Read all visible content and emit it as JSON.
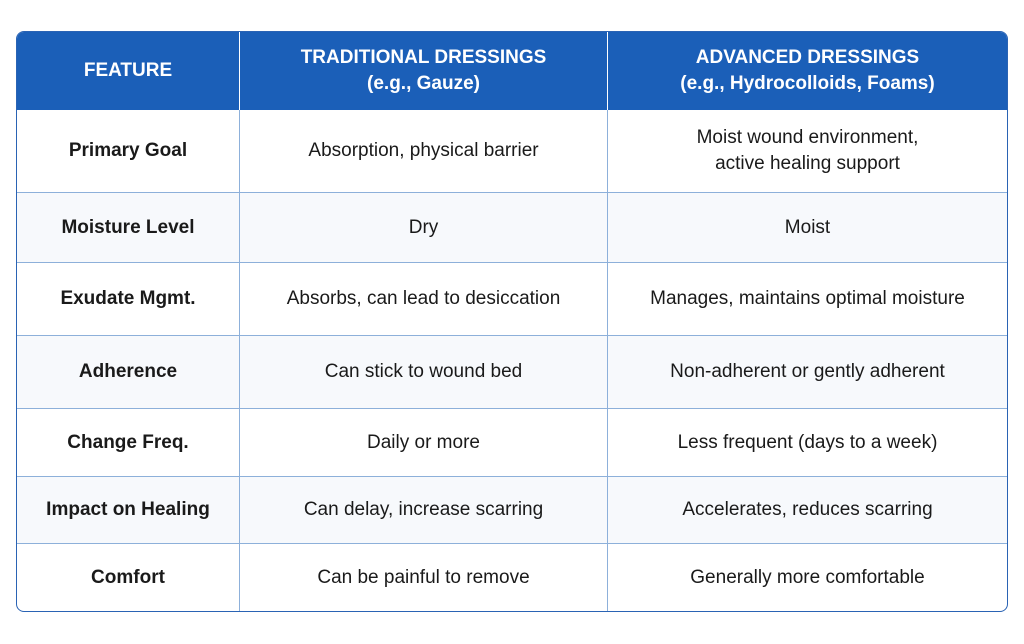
{
  "table": {
    "columns": [
      {
        "title": "FEATURE"
      },
      {
        "title": "TRADITIONAL DRESSINGS",
        "subtitle": "(e.g., Gauze)"
      },
      {
        "title": "ADVANCED DRESSINGS",
        "subtitle": "(e.g., Hydrocolloids, Foams)"
      }
    ],
    "rows": [
      [
        "Primary Goal",
        [
          "Absorption, physical barrier"
        ],
        [
          "Moist wound environment,",
          "active healing support"
        ]
      ],
      [
        "Moisture Level",
        [
          "Dry"
        ],
        [
          "Moist"
        ]
      ],
      [
        "Exudate Mgmt.",
        [
          "Absorbs, can lead to desiccation"
        ],
        [
          "Manages, maintains optimal moisture"
        ]
      ],
      [
        "Adherence",
        [
          "Can stick to wound bed"
        ],
        [
          "Non-adherent or gently adherent"
        ]
      ],
      [
        "Change Freq.",
        [
          "Daily or more"
        ],
        [
          "Less frequent (days to a week)"
        ]
      ],
      [
        "Impact on Healing",
        [
          "Can delay, increase scarring"
        ],
        [
          "Accelerates, reduces scarring"
        ]
      ],
      [
        "Comfort",
        [
          "Can be painful to remove"
        ],
        [
          "Generally more comfortable"
        ]
      ]
    ]
  }
}
